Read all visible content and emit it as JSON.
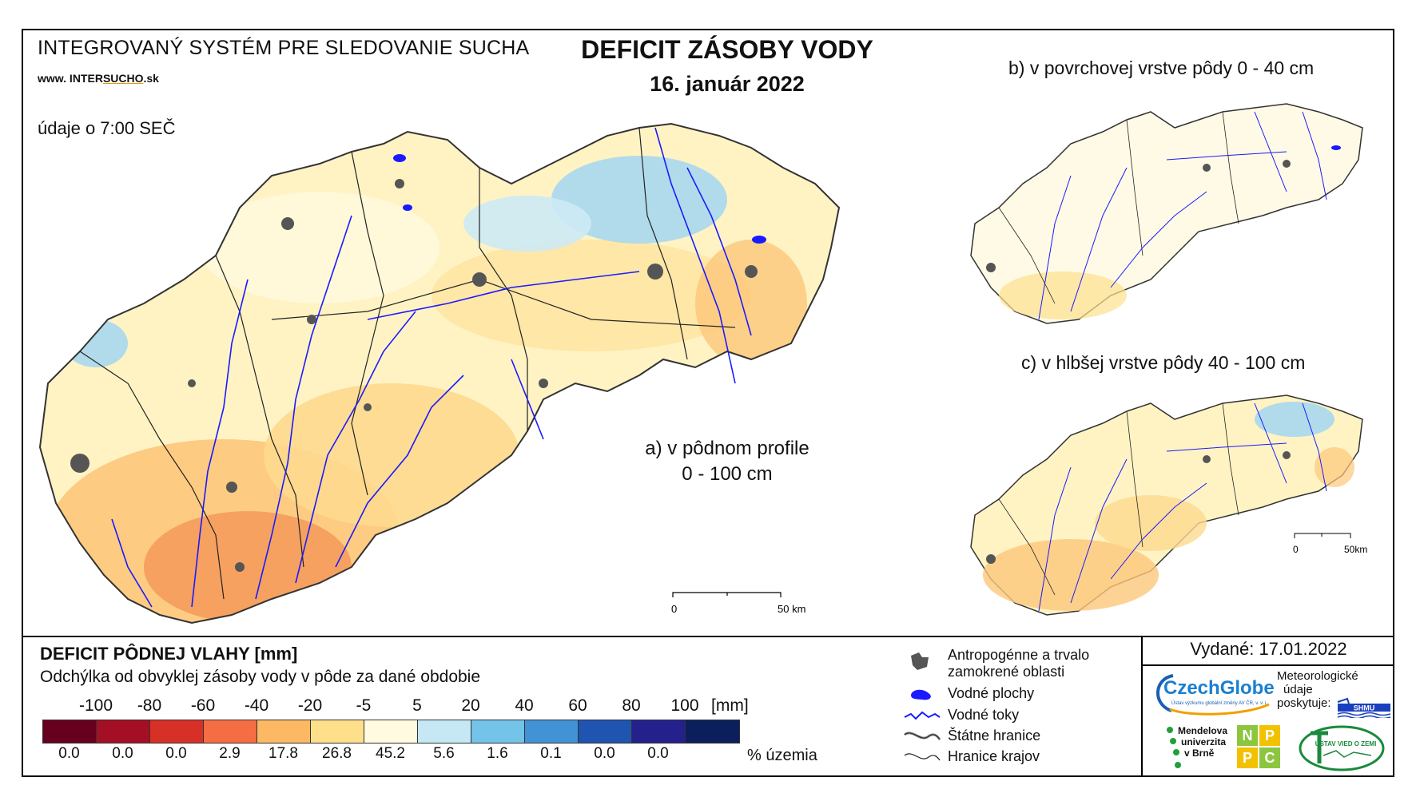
{
  "header": {
    "system_title": "INTEGROVANÝ SYSTÉM PRE SLEDOVANIE SUCHA",
    "website_prefix": "www. INTER",
    "website_underlined": "SUCHO",
    "website_suffix": ".sk",
    "data_time": "údaje o 7:00 SEČ",
    "main_title": "DEFICIT ZÁSOBY VODY",
    "date": "16. január 2022"
  },
  "maps": {
    "a_label_line1": "a) v pôdnom profile",
    "a_label_line2": "0 - 100 cm",
    "b_label": "b) v povrchovej vrstve pôdy 0 - 40 cm",
    "c_label": "c) v hlbšej vrstve pôdy 40 - 100 cm",
    "scale_main": {
      "start": "0",
      "end": "50 km"
    },
    "scale_small": {
      "start": "0",
      "end": "50km"
    }
  },
  "legend": {
    "title": "DEFICIT PÔDNEJ VLAHY [mm]",
    "subtitle": "Odchýlka od obvyklej zásoby vody v pôde za dané obdobie",
    "unit": "[mm]",
    "percent_label": "% územia",
    "ticks": [
      "-100",
      "-80",
      "-60",
      "-40",
      "-20",
      "-5",
      "5",
      "20",
      "40",
      "60",
      "80",
      "100"
    ],
    "classes": [
      {
        "color": "#67001f",
        "percent": "0.0"
      },
      {
        "color": "#a50f26",
        "percent": "0.0"
      },
      {
        "color": "#d73027",
        "percent": "0.0"
      },
      {
        "color": "#f46d43",
        "percent": "2.9"
      },
      {
        "color": "#fdb863",
        "percent": "17.8"
      },
      {
        "color": "#fee08b",
        "percent": "26.8"
      },
      {
        "color": "#fffae0",
        "percent": "45.2"
      },
      {
        "color": "#c6e8f5",
        "percent": "5.6"
      },
      {
        "color": "#74c3e8",
        "percent": "1.6"
      },
      {
        "color": "#4292d6",
        "percent": "0.1"
      },
      {
        "color": "#1f55b0",
        "percent": "0.0"
      },
      {
        "color": "#24218c",
        "percent": "0.0"
      },
      {
        "color": "#0b1f5c",
        "percent": ""
      }
    ]
  },
  "key": {
    "anthropogenic": "Antropogénne a trvalo zamokrené oblasti",
    "water_bodies": "Vodné plochy",
    "streams": "Vodné toky",
    "state_border": "Štátne hranice",
    "region_border": "Hranice krajov"
  },
  "footer": {
    "issued": "Vydané: 17.01.2022",
    "czechglobe": "CzechGlobe",
    "czechglobe_sub": "Ústav výzkumu globální změny AV ČR, v. v. i.",
    "meteo_line1": "Meteorologické",
    "meteo_line2": "údaje",
    "meteo_line3": "poskytuje:",
    "shmu": "SHMU",
    "mendel_line1": "Mendelova",
    "mendel_line2": "univerzita",
    "mendel_line3": "v Brně",
    "nppc_letters": [
      "N",
      "P",
      "P",
      "C"
    ],
    "uvz": "ÚSTAV VIED O ZEMI"
  },
  "colors": {
    "river": "#1a1aff",
    "urban": "#555555",
    "border": "#222222"
  }
}
